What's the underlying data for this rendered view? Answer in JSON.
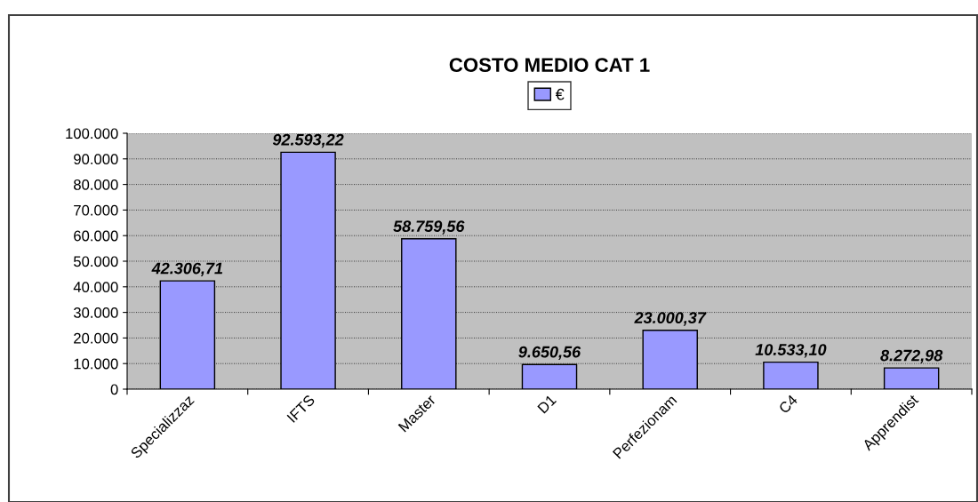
{
  "chart_data": {
    "type": "bar",
    "title": "COSTO MEDIO CAT 1",
    "categories": [
      "Specializzaz",
      "IFTS",
      "Master",
      "D1",
      "Perfezionam",
      "C4",
      "Apprendist"
    ],
    "series": [
      {
        "name": "€",
        "color": "#9999ff",
        "values": [
          42306.71,
          92593.22,
          58759.56,
          9650.56,
          23000.37,
          10533.1,
          8272.98
        ]
      }
    ],
    "value_labels": [
      "42.306,71",
      "92.593,22",
      "58.759,56",
      "9.650,56",
      "23.000,37",
      "10.533,10",
      "8.272,98"
    ],
    "ylim": [
      0,
      100000
    ],
    "yticks": [
      {
        "value": 0,
        "label": "0"
      },
      {
        "value": 10000,
        "label": "10.000"
      },
      {
        "value": 20000,
        "label": "20.000"
      },
      {
        "value": 30000,
        "label": "30.000"
      },
      {
        "value": 40000,
        "label": "40.000"
      },
      {
        "value": 50000,
        "label": "50.000"
      },
      {
        "value": 60000,
        "label": "60.000"
      },
      {
        "value": 70000,
        "label": "70.000"
      },
      {
        "value": 80000,
        "label": "80.000"
      },
      {
        "value": 90000,
        "label": "90.000"
      },
      {
        "value": 100000,
        "label": "100.000"
      }
    ],
    "grid": "y",
    "legend": "top"
  }
}
